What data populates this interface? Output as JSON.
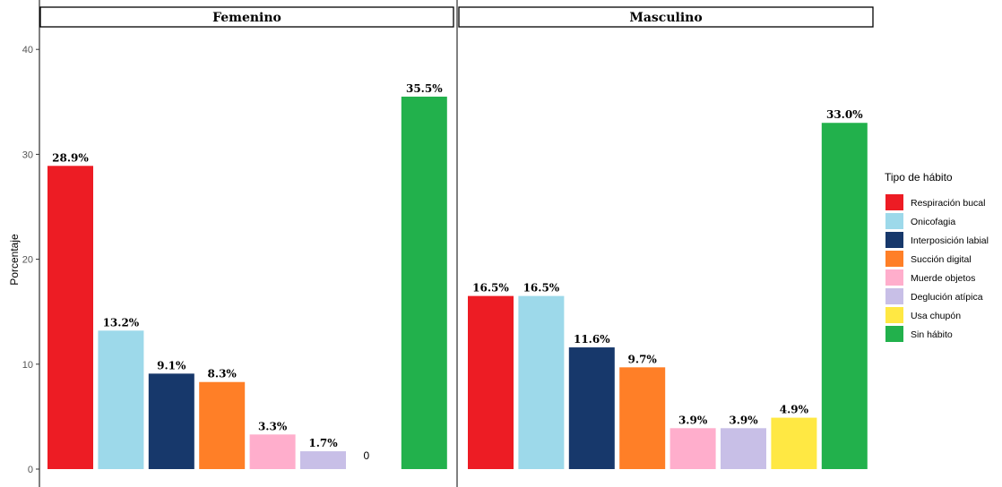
{
  "chart_data": {
    "type": "bar",
    "ylabel": "Porcentaje",
    "ylim": [
      0,
      40
    ],
    "yticks": [
      0,
      10,
      20,
      30,
      40
    ],
    "grid": false,
    "legend_position": "right",
    "legend": {
      "title": "Tipo de hábito",
      "entries": [
        {
          "label": "Respiración bucal",
          "color": "#ED1C24"
        },
        {
          "label": "Onicofagia",
          "color": "#9DD9EA"
        },
        {
          "label": "Interposición labial",
          "color": "#17386B"
        },
        {
          "label": "Succión digital",
          "color": "#FF7F27"
        },
        {
          "label": "Muerde objetos",
          "color": "#FFAECC"
        },
        {
          "label": "Deglución atípica",
          "color": "#C8BFE7"
        },
        {
          "label": "Usa chupón",
          "color": "#FFE843"
        },
        {
          "label": "Sin hábito",
          "color": "#22B14C"
        }
      ]
    },
    "panels": [
      {
        "title": "Femenino",
        "values": [
          28.9,
          13.2,
          9.1,
          8.3,
          3.3,
          1.7,
          0,
          35.5
        ],
        "labels": [
          "28.9%",
          "13.2%",
          "9.1%",
          "8.3%",
          "3.3%",
          "1.7%",
          "0",
          "35.5%"
        ]
      },
      {
        "title": "Masculino",
        "values": [
          16.5,
          16.5,
          11.6,
          9.7,
          3.9,
          3.9,
          4.9,
          33.0
        ],
        "labels": [
          "16.5%",
          "16.5%",
          "11.6%",
          "9.7%",
          "3.9%",
          "3.9%",
          "4.9%",
          "33.0%"
        ]
      }
    ]
  }
}
